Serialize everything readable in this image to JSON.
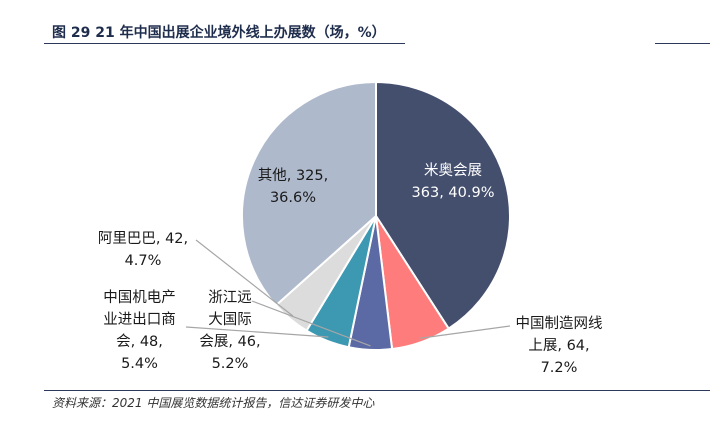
{
  "figure": {
    "title": "图 29  21 年中国出展企业境外线上办展数（场，%）",
    "source": "资料来源：2021 中国展览数据统计报告，信达证券研发中心"
  },
  "chart_data": {
    "type": "pie",
    "title": "21 年中国出展企业境外线上办展数（场，%）",
    "unit": "场，%",
    "slices": [
      {
        "label": "米奥会展",
        "value": 363,
        "percent": 40.9,
        "color": "#444f6e",
        "text_line1": "米奥会展",
        "text_line2": "363, 40.9%"
      },
      {
        "label": "中国制造网线上展",
        "value": 64,
        "percent": 7.2,
        "color": "#ff7c7c",
        "text_line1": "中国制造网线",
        "text_line2": "上展, 64,",
        "text_line3": "7.2%"
      },
      {
        "label": "浙江远大国际会展",
        "value": 46,
        "percent": 5.2,
        "color": "#5b6aa5",
        "text_line1": "浙江远",
        "text_line2": "大国际",
        "text_line3": "会展, 46,",
        "text_line4": "5.2%"
      },
      {
        "label": "中国机电产业进出口商会",
        "value": 48,
        "percent": 5.4,
        "color": "#3d98b2",
        "text_line1": "中国机电产",
        "text_line2": "业进出口商",
        "text_line3": "会, 48,",
        "text_line4": "5.4%"
      },
      {
        "label": "阿里巴巴",
        "value": 42,
        "percent": 4.7,
        "color": "#dcdcdc",
        "text_line1": "阿里巴巴, 42,",
        "text_line2": "4.7%"
      },
      {
        "label": "其他",
        "value": 325,
        "percent": 36.6,
        "color": "#aeb9cc",
        "text_line1": "其他, 325,",
        "text_line2": "36.6%"
      }
    ]
  }
}
